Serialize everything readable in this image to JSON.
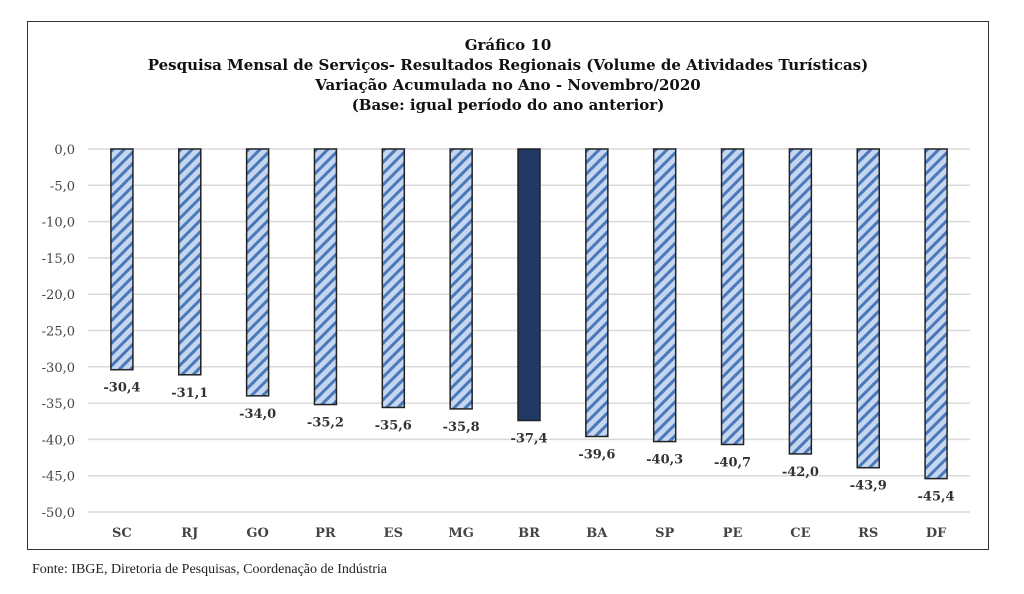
{
  "chart_data": {
    "type": "bar",
    "title": "Gráfico 10",
    "subtitle": [
      "Pesquisa Mensal de Serviços- Resultados Regionais (Volume de Atividades Turísticas)",
      "Variação Acumulada no Ano - Novembro/2020",
      "(Base: igual período do ano anterior)"
    ],
    "categories": [
      "SC",
      "RJ",
      "GO",
      "PR",
      "ES",
      "MG",
      "BR",
      "BA",
      "SP",
      "PE",
      "CE",
      "RS",
      "DF"
    ],
    "values": [
      -30.4,
      -31.1,
      -34.0,
      -35.2,
      -35.6,
      -35.8,
      -37.4,
      -39.6,
      -40.3,
      -40.7,
      -42.0,
      -43.9,
      -45.4
    ],
    "value_labels": [
      "-30,4",
      "-31,1",
      "-34,0",
      "-35,2",
      "-35,6",
      "-35,8",
      "-37,4",
      "-39,6",
      "-40,3",
      "-40,7",
      "-42,0",
      "-43,9",
      "-45,4"
    ],
    "ylim": [
      -50,
      0
    ],
    "yticks": [
      0,
      -5,
      -10,
      -15,
      -20,
      -25,
      -30,
      -35,
      -40,
      -45,
      -50
    ],
    "ytick_labels": [
      "0,0",
      "-5,0",
      "-10,0",
      "-15,0",
      "-20,0",
      "-25,0",
      "-30,0",
      "-35,0",
      "-40,0",
      "-45,0",
      "-50,0"
    ],
    "grid": true,
    "highlight_category": "BR",
    "colors": {
      "bar_fill": "#c5d7f0",
      "bar_hatch": "#4a78b8",
      "highlight": "#1f3864",
      "grid": "#d9d9d9"
    }
  },
  "source": "Fonte: IBGE, Diretoria de Pesquisas, Coordenação de Indústria"
}
